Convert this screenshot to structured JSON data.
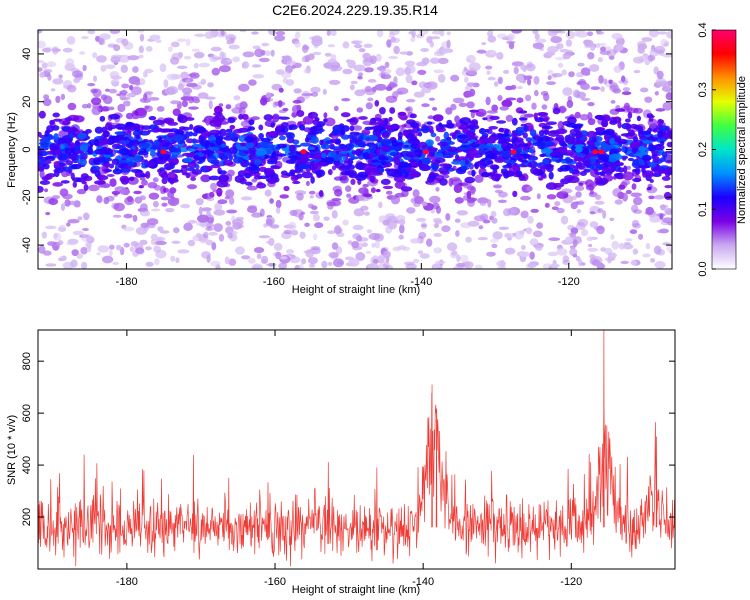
{
  "title": "C2E6.2024.229.19.35.R14",
  "chart_data": [
    {
      "type": "heatmap",
      "xlabel": "Height of straight line (km)",
      "ylabel": "Frequency (Hz)",
      "xlim": [
        -192,
        -106
      ],
      "ylim": [
        -50,
        50
      ],
      "x_ticks": [
        -180,
        -160,
        -140,
        -120
      ],
      "y_ticks": [
        -40,
        -20,
        0,
        20,
        40
      ],
      "x_tick_labels": [
        "-180",
        "-160",
        "-140",
        "-120"
      ],
      "y_tick_labels": [
        "-40",
        "-20",
        "0",
        "20",
        "40"
      ],
      "band_center_hz": 0,
      "band_halfwidth_hz": 12,
      "colorbar": {
        "label": "Normalized spectral amplitude",
        "range": [
          0,
          0.4
        ],
        "ticks": [
          0,
          0.1,
          0.2,
          0.3,
          0.4
        ],
        "tick_labels": [
          "0.0",
          "0.1",
          "0.2",
          "0.3",
          "0.4"
        ],
        "colors": [
          "#ffffff",
          "#c9a8f0",
          "#7a00e6",
          "#1a00ff",
          "#0090ff",
          "#00e6c8",
          "#40ff40",
          "#e6ff00",
          "#ff9000",
          "#ff0000",
          "#ff0070"
        ]
      },
      "grid": false
    },
    {
      "type": "line",
      "xlabel": "Height of straight line (km)",
      "ylabel": "SNR (10 * v/v)",
      "xlim": [
        -192,
        -106
      ],
      "ylim": [
        0,
        920
      ],
      "x_ticks": [
        -180,
        -160,
        -140,
        -120
      ],
      "y_ticks": [
        200,
        400,
        600,
        800
      ],
      "x_tick_labels": [
        "-180",
        "-160",
        "-140",
        "-120"
      ],
      "y_tick_labels": [
        "200",
        "400",
        "600",
        "800"
      ],
      "color": "#ef3b36",
      "baseline_mean": 160,
      "peaks": [
        {
          "x": -138.8,
          "y": 710
        },
        {
          "x": -138.2,
          "y": 600
        },
        {
          "x": -115.6,
          "y": 920
        },
        {
          "x": -108.5,
          "y": 510
        }
      ],
      "grid": false
    }
  ]
}
